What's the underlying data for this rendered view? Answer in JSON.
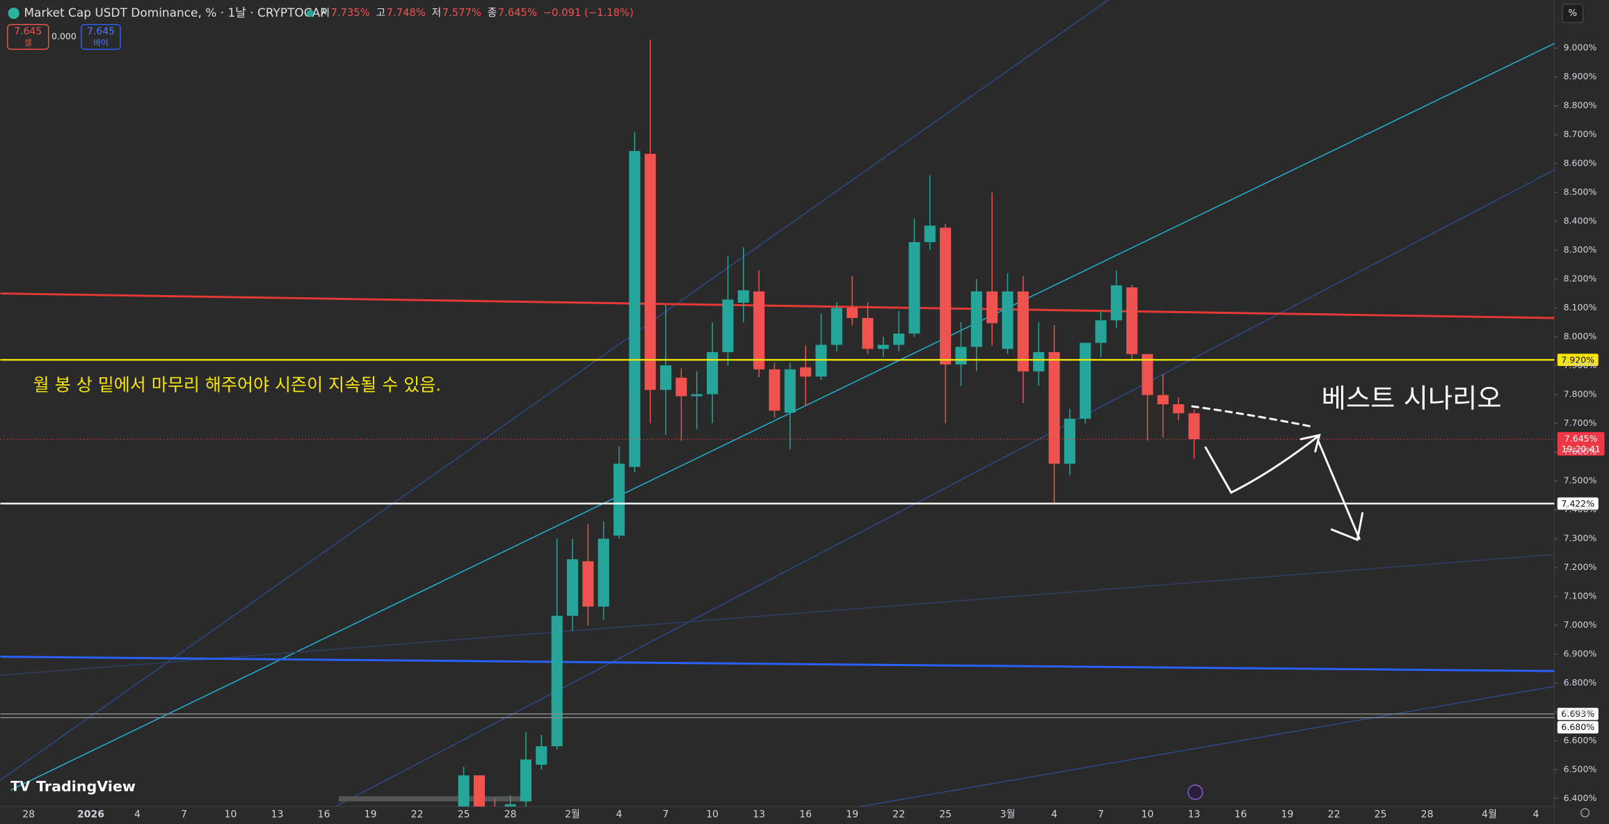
{
  "header": {
    "title": "Market Cap USDT Dominance, % · 1날 · CRYPTOCAP",
    "ohlc": [
      {
        "key": "시",
        "text": "7.735%"
      },
      {
        "key": "고",
        "text": "7.748%"
      },
      {
        "key": "저",
        "text": "7.577%"
      },
      {
        "key": "종",
        "text": "7.645%"
      }
    ],
    "change": "−0.091 (−1.18%)",
    "sell": {
      "price": "7.645",
      "label": "셀"
    },
    "spread": "0.000",
    "buy": {
      "price": "7.645",
      "label": "바이"
    },
    "unit_button": "%",
    "logo": "TradingView"
  },
  "chart_data": {
    "type": "candlestick",
    "categories": [
      null,
      "28",
      null,
      null,
      null,
      "2026",
      null,
      null,
      "4",
      null,
      null,
      "7",
      null,
      null,
      "10",
      null,
      null,
      "13",
      null,
      null,
      "16",
      null,
      null,
      "19",
      null,
      null,
      "22",
      null,
      null,
      "25",
      null,
      null,
      "28",
      null,
      null,
      null,
      "2월",
      null,
      null,
      "4",
      null,
      null,
      "7",
      null,
      null,
      "10",
      null,
      null,
      "13",
      null,
      null,
      "16",
      null,
      null,
      "19",
      null,
      null,
      "22",
      null,
      null,
      "25",
      null,
      null,
      null,
      "3월",
      null,
      null,
      "4",
      null,
      null,
      "7",
      null,
      null,
      "10",
      null,
      null,
      "13",
      null,
      null,
      "16",
      null,
      null,
      "19",
      null,
      null,
      "22",
      null,
      null,
      "25",
      null,
      null,
      "28",
      null,
      null,
      null,
      "4월",
      null,
      null,
      "4",
      null
    ],
    "open": [
      null,
      null,
      null,
      null,
      null,
      null,
      null,
      null,
      null,
      null,
      null,
      null,
      null,
      null,
      null,
      null,
      null,
      null,
      null,
      null,
      null,
      null,
      null,
      null,
      null,
      null,
      null,
      null,
      null,
      6.36,
      6.48,
      6.36,
      6.33,
      6.39,
      6.517,
      6.581,
      7.033,
      7.222,
      7.065,
      7.311,
      7.549,
      8.634,
      7.816,
      7.858,
      7.794,
      7.801,
      7.947,
      8.118,
      8.157,
      7.887,
      7.737,
      7.894,
      7.862,
      7.972,
      8.1,
      8.065,
      7.958,
      7.972,
      8.011,
      8.328,
      8.378,
      7.904,
      7.965,
      8.157,
      7.958,
      8.157,
      7.88,
      7.947,
      7.56,
      7.716,
      7.979,
      8.057,
      8.171,
      7.94,
      7.798,
      7.766,
      7.735,
      null,
      null,
      null,
      null,
      null,
      null,
      null,
      null,
      null,
      null,
      null,
      null,
      null,
      null,
      null,
      null,
      null,
      null,
      null,
      null,
      null,
      null,
      null
    ],
    "high": [
      null,
      null,
      null,
      null,
      null,
      null,
      null,
      null,
      null,
      null,
      null,
      null,
      null,
      null,
      null,
      null,
      null,
      null,
      null,
      null,
      null,
      null,
      null,
      null,
      null,
      null,
      null,
      null,
      null,
      6.51,
      6.48,
      6.4,
      6.41,
      6.63,
      6.62,
      7.3,
      7.3,
      7.35,
      7.36,
      7.62,
      8.71,
      9.03,
      8.11,
      7.89,
      7.88,
      8.05,
      8.28,
      8.31,
      8.23,
      7.91,
      7.91,
      7.97,
      8.08,
      8.12,
      8.21,
      8.12,
      8.0,
      8.09,
      8.41,
      8.56,
      8.39,
      8.05,
      8.2,
      8.5,
      8.22,
      8.21,
      8.05,
      8.04,
      7.75,
      7.98,
      8.09,
      8.23,
      8.18,
      7.94,
      7.87,
      7.79,
      7.748,
      null,
      null,
      null,
      null,
      null,
      null,
      null,
      null,
      null,
      null,
      null,
      null,
      null,
      null,
      null,
      null,
      null,
      null,
      null,
      null,
      null,
      null,
      null
    ],
    "low": [
      null,
      null,
      null,
      null,
      null,
      null,
      null,
      null,
      null,
      null,
      null,
      null,
      null,
      null,
      null,
      null,
      null,
      null,
      null,
      null,
      null,
      null,
      null,
      null,
      null,
      null,
      null,
      null,
      null,
      6.33,
      6.34,
      6.3,
      6.31,
      6.37,
      6.5,
      6.57,
      6.98,
      7.0,
      7.02,
      7.3,
      7.53,
      7.7,
      7.66,
      7.64,
      7.68,
      7.7,
      7.9,
      8.05,
      7.86,
      7.72,
      7.61,
      7.76,
      7.85,
      7.95,
      8.04,
      7.94,
      7.93,
      7.95,
      8.0,
      8.3,
      7.7,
      7.83,
      7.88,
      7.97,
      7.94,
      7.77,
      7.83,
      7.42,
      7.52,
      7.7,
      7.93,
      8.03,
      7.92,
      7.64,
      7.65,
      7.71,
      7.577,
      null,
      null,
      null,
      null,
      null,
      null,
      null,
      null,
      null,
      null,
      null,
      null,
      null,
      null,
      null,
      null,
      null,
      null,
      null,
      null,
      null,
      null,
      null
    ],
    "close": [
      null,
      null,
      null,
      null,
      null,
      null,
      null,
      null,
      null,
      null,
      null,
      null,
      null,
      null,
      null,
      null,
      null,
      null,
      null,
      null,
      null,
      null,
      null,
      null,
      null,
      null,
      null,
      null,
      null,
      6.48,
      6.36,
      6.33,
      6.38,
      6.535,
      6.581,
      7.033,
      7.229,
      7.065,
      7.3,
      7.56,
      8.644,
      7.816,
      7.901,
      7.794,
      7.801,
      7.947,
      8.129,
      8.161,
      7.887,
      7.744,
      7.887,
      7.862,
      7.972,
      8.1,
      8.065,
      7.958,
      7.972,
      8.011,
      8.328,
      8.385,
      7.904,
      7.965,
      8.157,
      8.047,
      8.157,
      7.88,
      7.947,
      7.56,
      7.716,
      7.979,
      8.057,
      8.178,
      7.94,
      7.798,
      7.766,
      7.735,
      7.645,
      null,
      null,
      null,
      null,
      null,
      null,
      null,
      null,
      null,
      null,
      null,
      null,
      null,
      null,
      null,
      null,
      null,
      null,
      null,
      null,
      null,
      null,
      null
    ],
    "up_color": "#26a69a",
    "down_color": "#ef5350",
    "ylim": [
      6.372,
      9.167
    ],
    "yticks": [
      {
        "value": 6.4,
        "label": "6.400%"
      },
      {
        "value": 6.5,
        "label": "6.500%"
      },
      {
        "value": 6.6,
        "label": "6.600%"
      },
      {
        "value": 6.7,
        "label": "6.700%"
      },
      {
        "value": 6.8,
        "label": "6.800%"
      },
      {
        "value": 6.9,
        "label": "6.900%"
      },
      {
        "value": 7.0,
        "label": "7.000%"
      },
      {
        "value": 7.1,
        "label": "7.100%"
      },
      {
        "value": 7.2,
        "label": "7.200%"
      },
      {
        "value": 7.3,
        "label": "7.300%"
      },
      {
        "value": 7.4,
        "label": "7.400%"
      },
      {
        "value": 7.5,
        "label": "7.500%"
      },
      {
        "value": 7.6,
        "label": "7.600%"
      },
      {
        "value": 7.7,
        "label": "7.700%"
      },
      {
        "value": 7.8,
        "label": "7.800%"
      },
      {
        "value": 7.9,
        "label": "7.900%"
      },
      {
        "value": 8.0,
        "label": "8.000%"
      },
      {
        "value": 8.1,
        "label": "8.100%"
      },
      {
        "value": 8.2,
        "label": "8.200%"
      },
      {
        "value": 8.3,
        "label": "8.300%"
      },
      {
        "value": 8.4,
        "label": "8.400%"
      },
      {
        "value": 8.5,
        "label": "8.500%"
      },
      {
        "value": 8.6,
        "label": "8.600%"
      },
      {
        "value": 8.7,
        "label": "8.700%"
      },
      {
        "value": 8.8,
        "label": "8.800%"
      },
      {
        "value": 8.9,
        "label": "8.900%"
      },
      {
        "value": 9.0,
        "label": "9.000%"
      }
    ],
    "levels": [
      {
        "value": 7.92,
        "label": "7.920%",
        "color": "#f5e50a",
        "box": "#f5e50a"
      },
      {
        "value": 7.422,
        "label": "7.422%",
        "color": "#ffffff",
        "box": "#ffffff"
      },
      {
        "value": 6.693,
        "label": "6.693%",
        "color": "#8a8a8a",
        "box": "#ffffff"
      },
      {
        "value": 6.68,
        "label": "6.680%",
        "color": "#8a8a8a",
        "box": "#ffffff"
      }
    ],
    "last_price": {
      "value": 7.645,
      "label": "7.645%",
      "countdown": "19:20:41",
      "color": "#f23645"
    },
    "annotations": [
      "월 봉 상 밑에서 마무리 해주어야 시즌이 지속될 수 있음.",
      "베스트 시나리오"
    ]
  }
}
